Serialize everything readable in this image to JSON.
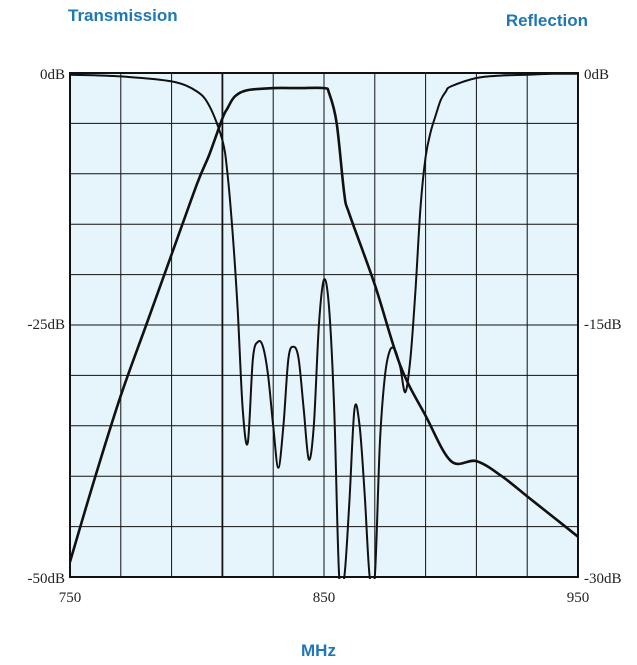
{
  "chart_data": {
    "type": "line",
    "title_left": "Transmission",
    "title_right": "Reflection",
    "xlabel": "MHz",
    "xlim": [
      750,
      950
    ],
    "x_ticks": [
      "750",
      "850",
      "950"
    ],
    "ylim_left": [
      -50,
      0
    ],
    "y_ticks_left": [
      "0dB",
      "-25dB",
      "-50dB"
    ],
    "ylim_right": [
      -30,
      0
    ],
    "y_ticks_right": [
      "0dB",
      "-15dB",
      "-30dB"
    ],
    "grid": true,
    "background_color": "#e6f4fb",
    "line_color": "#111111",
    "series": [
      {
        "axis": "left",
        "x": [
          750,
          760,
          770,
          780,
          790,
          800,
          805,
          810,
          812,
          815,
          820,
          830,
          840,
          850,
          852,
          855,
          858,
          860,
          870,
          880,
          890,
          900,
          910,
          920,
          930,
          940,
          950
        ],
        "y": [
          -48.5,
          -40,
          -32,
          -25,
          -18,
          -11,
          -8,
          -4.5,
          -3.5,
          -2.3,
          -1.7,
          -1.5,
          -1.5,
          -1.5,
          -2,
          -5,
          -12,
          -14,
          -21,
          -29,
          -34,
          -38.5,
          -38.5,
          -40,
          -42,
          -44,
          -46
        ]
      },
      {
        "axis": "right",
        "x": [
          750,
          770,
          790,
          800,
          805,
          810,
          812,
          814,
          816,
          818,
          820,
          822,
          824,
          826,
          828,
          830,
          832,
          834,
          836,
          838,
          840,
          842,
          844,
          846,
          848,
          850,
          852,
          854,
          856,
          858,
          860,
          862,
          864,
          866,
          868,
          870,
          872,
          874,
          876,
          878,
          880,
          882,
          884,
          886,
          888,
          890,
          892,
          894,
          896,
          898,
          900,
          910,
          920,
          930,
          940,
          950
        ],
        "y": [
          -0.1,
          -0.2,
          -0.5,
          -1.1,
          -2,
          -4,
          -6,
          -9.5,
          -14,
          -20,
          -22,
          -17,
          -16,
          -16.3,
          -18,
          -21,
          -23.5,
          -21,
          -17,
          -16.3,
          -17,
          -20,
          -23,
          -21,
          -15,
          -12.3,
          -14,
          -20,
          -31,
          -34,
          -25.5,
          -20,
          -21,
          -25,
          -34,
          -30,
          -22,
          -18,
          -16.5,
          -16.5,
          -17.5,
          -19,
          -17,
          -13,
          -8,
          -5,
          -3.5,
          -2.5,
          -1.6,
          -1.1,
          -0.8,
          -0.3,
          -0.15,
          -0.1,
          -0.05,
          -0.05
        ]
      }
    ]
  }
}
